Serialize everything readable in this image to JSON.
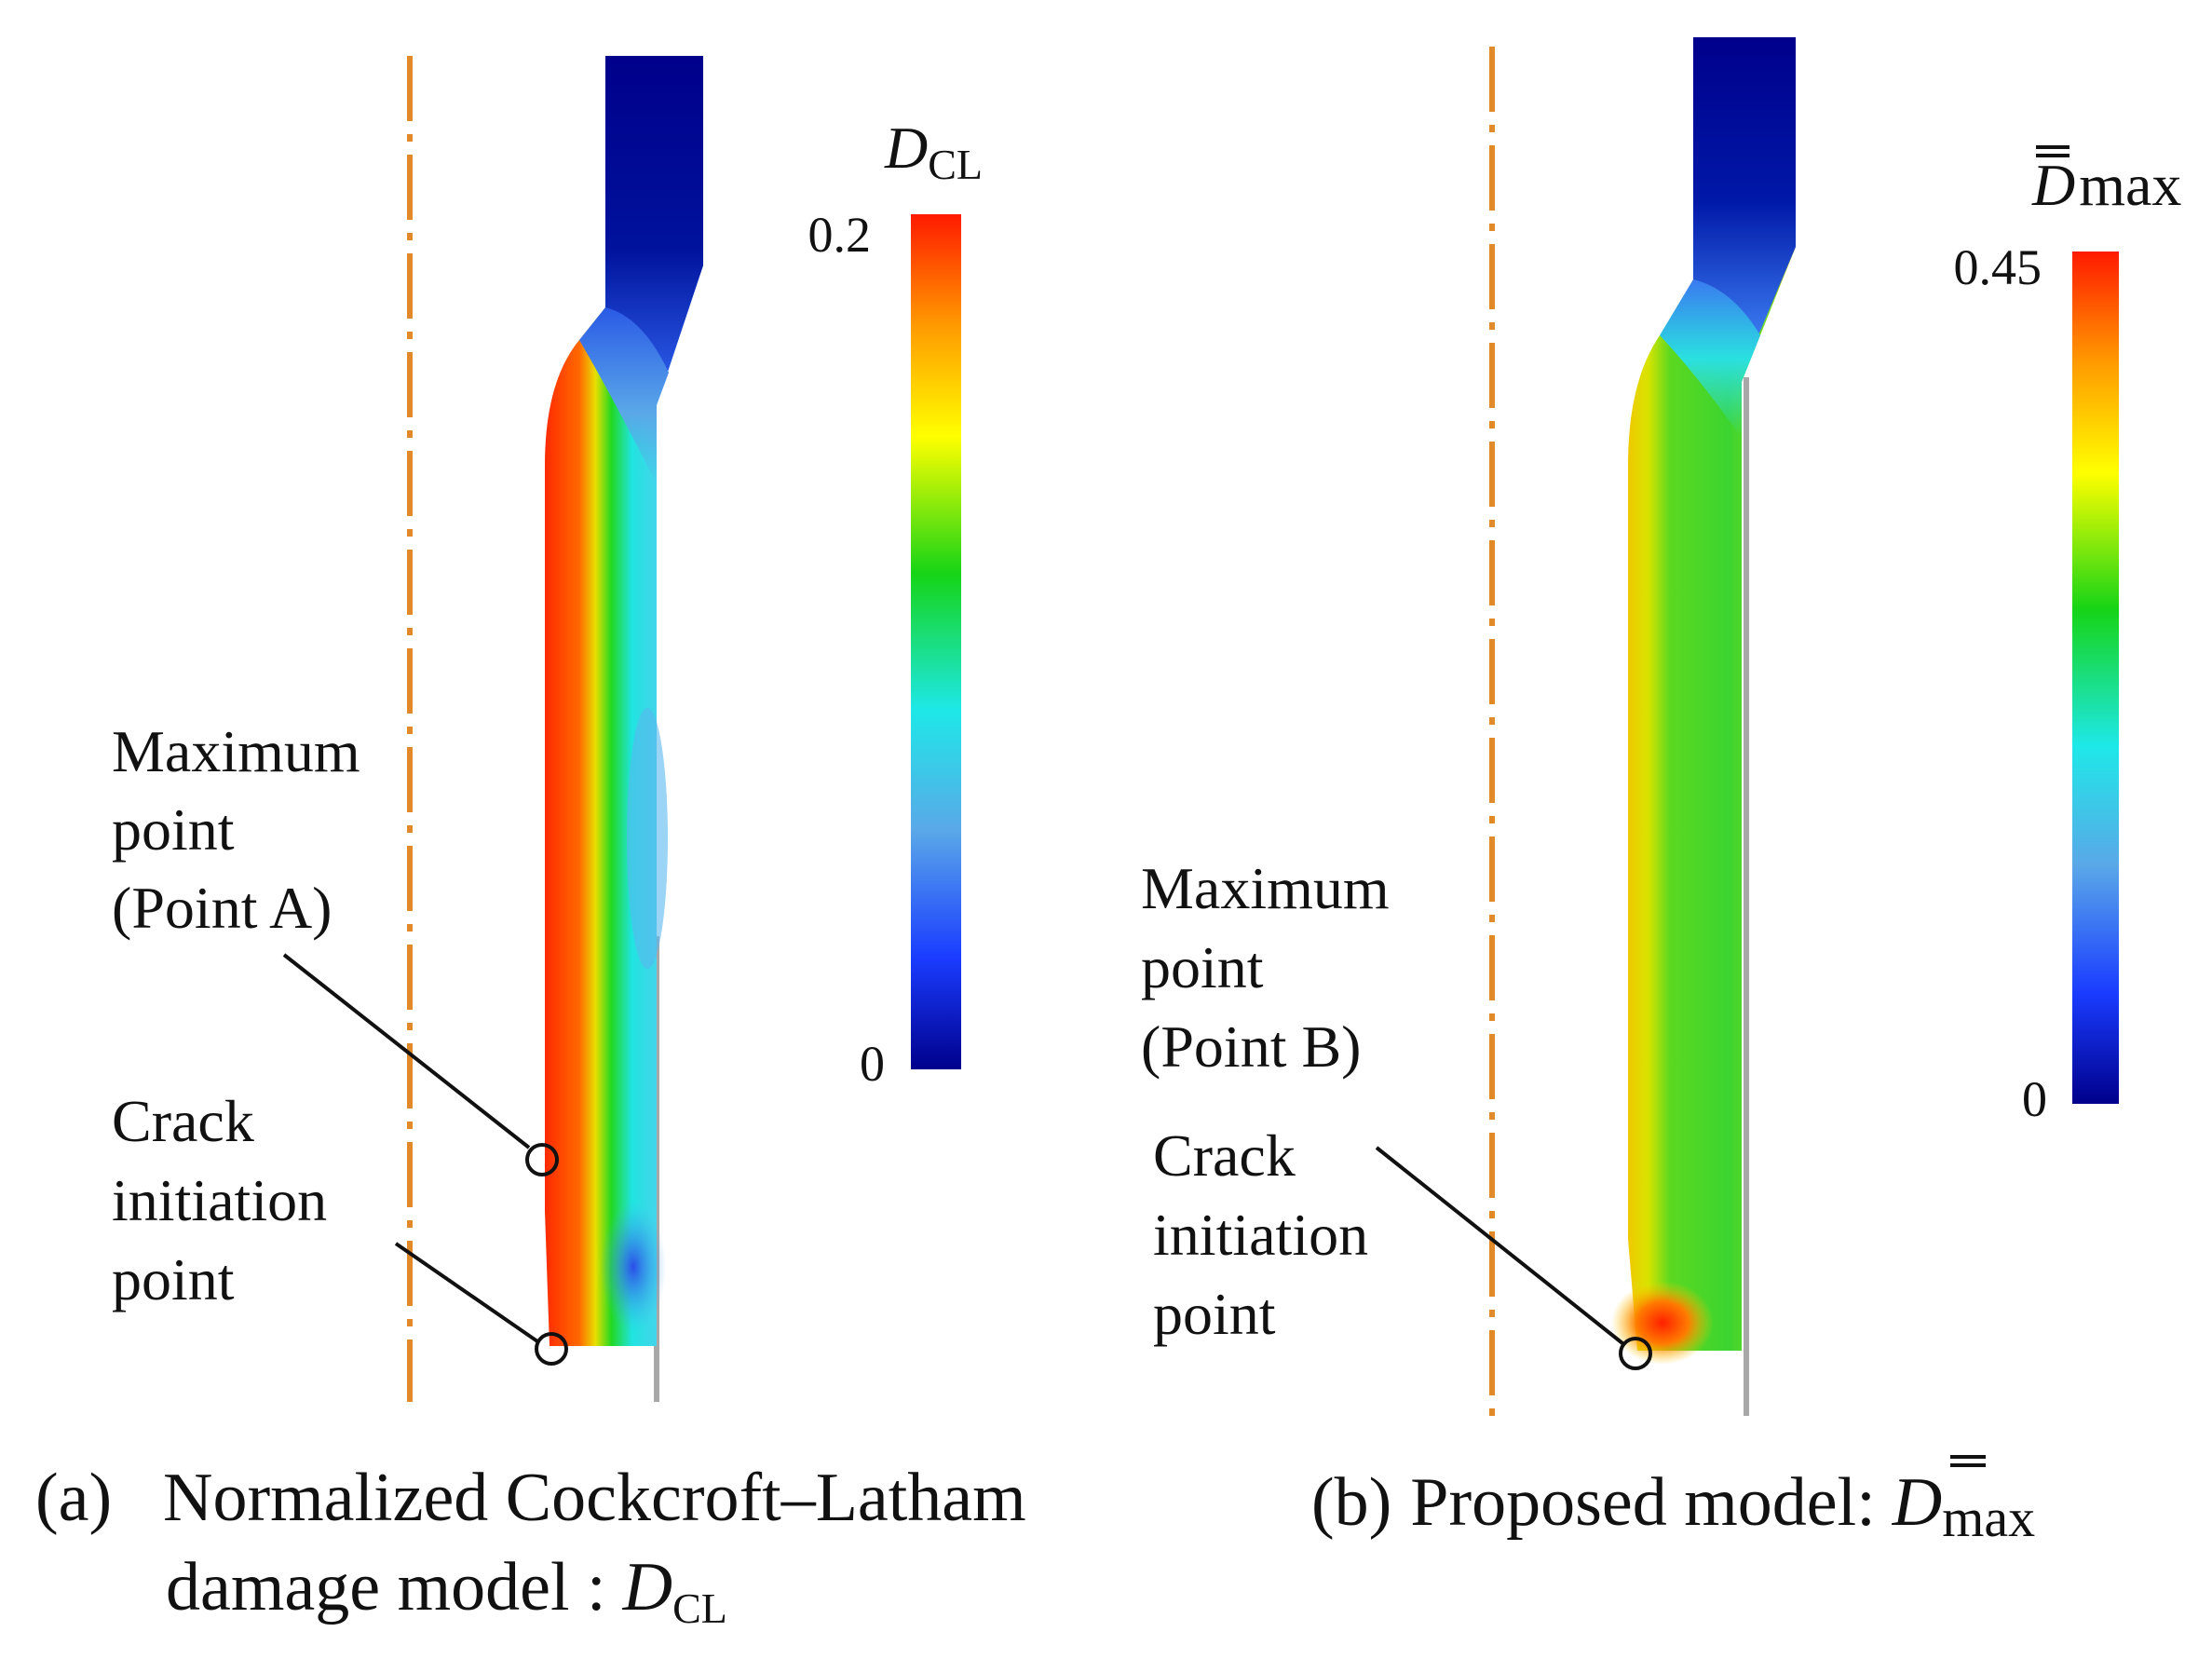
{
  "panel_a": {
    "annotations": {
      "maximum": [
        "Maximum",
        "point",
        "(Point A)"
      ],
      "crack": [
        "Crack",
        "initiation",
        "point"
      ]
    },
    "colorbar": {
      "symbol": "D",
      "subscript": "CL",
      "max": "0.2",
      "min": "0"
    },
    "caption": {
      "prefix": "(a)",
      "line1": "Normalized Cockcroft–Latham",
      "line2": "damage model :",
      "symbol": "D",
      "subscript": "CL"
    }
  },
  "panel_b": {
    "annotations": {
      "maximum": [
        "Maximum",
        "point",
        "(Point B)"
      ],
      "crack": [
        "Crack",
        "initiation",
        "point"
      ]
    },
    "colorbar": {
      "symbol": "D",
      "subscript": "max",
      "max": "0.45",
      "min": "0"
    },
    "caption": {
      "prefix": "(b)",
      "line1": "Proposed model:",
      "symbol": "D",
      "subscript": "max"
    }
  },
  "colors": {
    "axis_line": "#e08a2a",
    "scale": [
      "#00008b",
      "#1a3cff",
      "#5aa8e8",
      "#1ee8e8",
      "#16d416",
      "#ffff00",
      "#ff9a00",
      "#ff1a00"
    ]
  }
}
